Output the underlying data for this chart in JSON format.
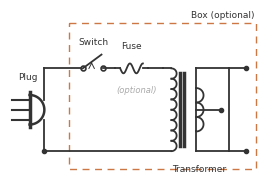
{
  "bg_color": "#ffffff",
  "box_color": "#cc7744",
  "wire_color": "#333333",
  "label_color": "#333333",
  "optional_color": "#aaaaaa",
  "title": "Box (optional)",
  "plug_label": "Plug",
  "switch_label": "Switch",
  "fuse_label": "Fuse",
  "fuse_optional": "(optional)",
  "transformer_label": "Transformer",
  "figsize": [
    2.68,
    1.88
  ],
  "dpi": 100
}
